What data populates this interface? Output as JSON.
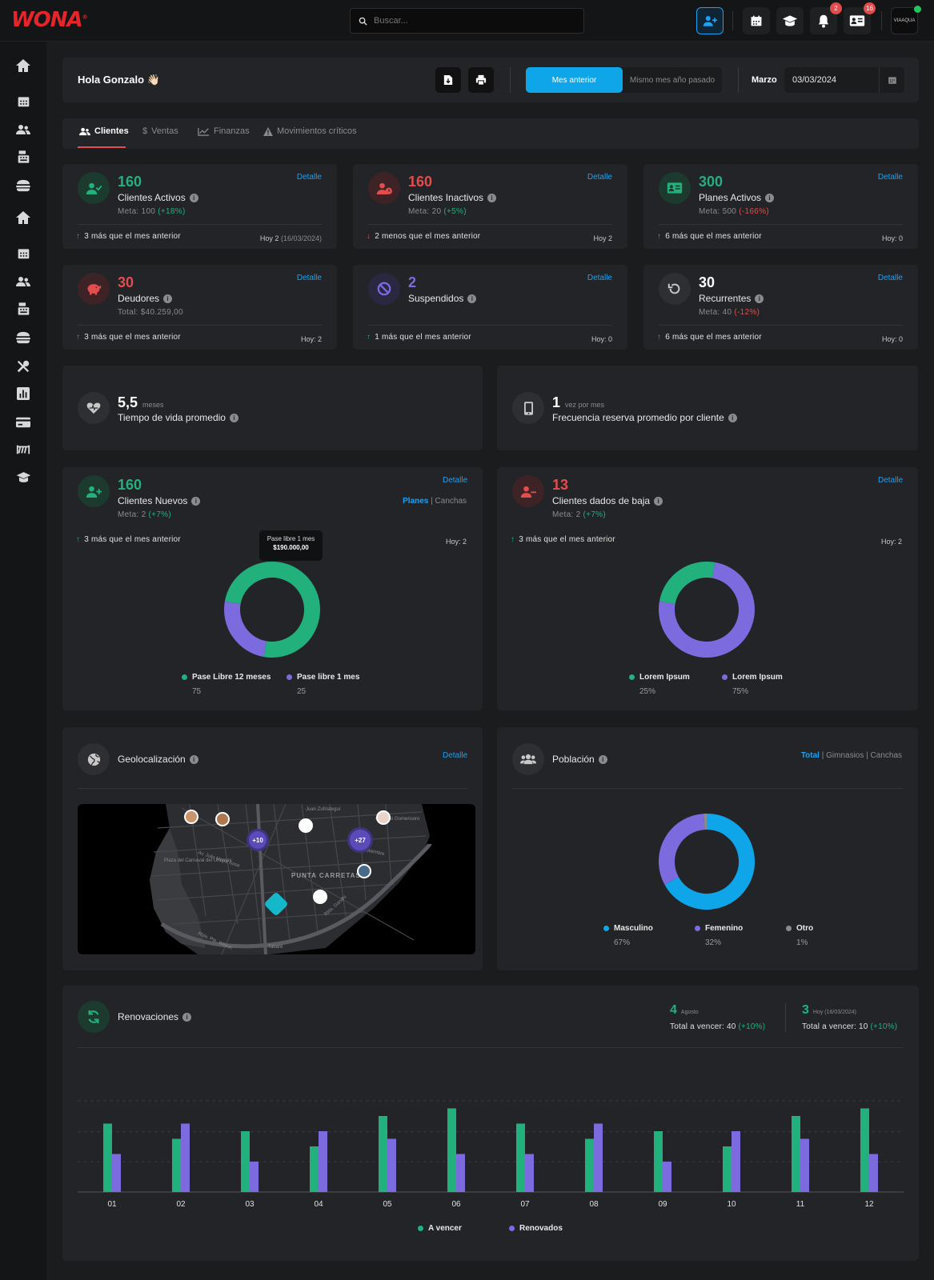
{
  "app": {
    "logo": "WONA",
    "logo_mark": "®"
  },
  "topbar": {
    "search_placeholder": "Buscar...",
    "notifications_count": "2",
    "messages_count": "16",
    "avatar_text": "VIAAQUA"
  },
  "header": {
    "greeting": "Hola Gonzalo 👋🏻",
    "segment_active": "Mes anterior",
    "segment_other": "Mismo mes año pasado",
    "month_label": "Marzo",
    "date_value": "03/03/2024"
  },
  "tabs": [
    {
      "label": "Clientes",
      "icon": "users-icon",
      "active": true
    },
    {
      "label": "Ventas",
      "icon": "dollar-icon",
      "active": false
    },
    {
      "label": "Finanzas",
      "icon": "chart-line-icon",
      "active": false
    },
    {
      "label": "Movimientos críticos",
      "icon": "warning-icon",
      "active": false
    }
  ],
  "kpis": [
    {
      "value": "160",
      "label": "Clientes Activos",
      "meta_text": "Meta: 100",
      "meta_delta": "(+18%)",
      "footer": "3 más que el mes anterior",
      "footer_right": "Hoy 2",
      "footer_right_date": "(16/03/2024)",
      "link": "Detalle",
      "color": "#22b07d",
      "icon": "user-check-icon"
    },
    {
      "value": "160",
      "label": "Clientes Inactivos",
      "meta_text": "Meta: 20",
      "meta_delta": "(+5%)",
      "footer": "2 menos que el mes anterior",
      "footer_right": "Hoy 2",
      "link": "Detalle",
      "color": "#e34d4d",
      "icon": "user-clock-icon"
    },
    {
      "value": "300",
      "label": "Planes Activos",
      "meta_text": "Meta: 500",
      "meta_delta": "(-166%)",
      "footer": "6 más que el mes anterior",
      "footer_right": "Hoy: 0",
      "link": "Detalle",
      "color": "#22b07d",
      "icon": "id-card-icon"
    },
    {
      "value": "30",
      "label": "Deudores",
      "meta_text": "Total: $40.259,00",
      "meta_delta": "",
      "footer": "3 más que el mes anterior",
      "footer_right": "Hoy: 2",
      "link": "Detalle",
      "color": "#e34d4d",
      "icon": "piggy-bank-icon"
    },
    {
      "value": "2",
      "label": "Suspendidos",
      "meta_text": "",
      "meta_delta": "",
      "footer": "1 más que el mes anterior",
      "footer_right": "Hoy: 0",
      "link": "Detalle",
      "color": "#7c6bdf",
      "icon": "ban-icon"
    },
    {
      "value": "30",
      "label": "Recurrentes",
      "meta_text": "Meta: 40",
      "meta_delta": "(-12%)",
      "footer": "6 más que el mes anterior",
      "footer_right": "Hoy: 0",
      "link": "Detalle",
      "color": "#ffffff",
      "icon": "history-icon"
    }
  ],
  "lifetime": {
    "value": "5,5",
    "unit": "meses",
    "label": "Tiempo de vida promedio"
  },
  "frequency": {
    "value": "1",
    "unit": "vez por mes",
    "label": "Frecuencia reserva promedio por cliente"
  },
  "new_clients": {
    "value": "160",
    "label": "Clientes Nuevos",
    "meta": "Meta: 2",
    "meta_delta": "(+7%)",
    "link": "Detalle",
    "filter_active": "Planes",
    "filter_other": "Canchas",
    "footer": "3 más que el mes anterior",
    "footer_right": "Hoy: 2",
    "tooltip_title": "Pase libre 1 mes",
    "tooltip_value": "$190.000,00"
  },
  "churn": {
    "value": "13",
    "label": "Clientes dados de baja",
    "meta": "Meta: 2",
    "meta_delta": "(+7%)",
    "link": "Detalle",
    "footer": "3 más que el mes anterior",
    "footer_right": "Hoy: 2"
  },
  "geo": {
    "title": "Geolocalización",
    "link": "Detalle",
    "cluster_a": "+10",
    "cluster_b": "+27",
    "map_labels": [
      "PUNTA CARRETAS",
      "Av. Julio María Sosa",
      "21 de Setiembre",
      "Plaza del Carnaval del Uruguay",
      "Gonzalo Gomensoro",
      "Rbla. Pte. Wilson",
      "Rbla. Gandhi",
      "Juan Zufriategui",
      "Tabaré"
    ]
  },
  "population": {
    "title": "Población",
    "filter_active": "Total",
    "filter_b": "Gimnasios",
    "filter_c": "Canchas"
  },
  "renewals": {
    "title": "Renovaciones",
    "s1_value": "4",
    "s1_label": "Agosto",
    "s1_text": "Total a vencer: 40",
    "s1_delta": "(+10%)",
    "s2_value": "3",
    "s2_label": "Hoy (16/03/2024)",
    "s2_text": "Total a vencer: 10",
    "s2_delta": "(+10%)"
  },
  "colors": {
    "green": "#22b07d",
    "purple": "#7c6bdf",
    "blue": "#0ea5e9",
    "gray": "#6b6c72",
    "red": "#e34d4d",
    "accent": "#1da1f2"
  },
  "chart_data": [
    {
      "type": "pie",
      "title": "Clientes Nuevos",
      "series": [
        {
          "name": "Pase Libre 12 meses",
          "value": 75,
          "display": "75",
          "color": "#22b07d"
        },
        {
          "name": "Pase libre 1 mes",
          "value": 25,
          "display": "25",
          "color": "#7c6bdf"
        }
      ]
    },
    {
      "type": "pie",
      "title": "Clientes dados de baja",
      "series": [
        {
          "name": "Lorem Ipsum",
          "value": 25,
          "display": "25%",
          "color": "#22b07d"
        },
        {
          "name": "Lorem Ipsum",
          "value": 75,
          "display": "75%",
          "color": "#7c6bdf"
        }
      ]
    },
    {
      "type": "pie",
      "title": "Población",
      "series": [
        {
          "name": "Masculino",
          "value": 67,
          "display": "67%",
          "color": "#0ea5e9"
        },
        {
          "name": "Femenino",
          "value": 32,
          "display": "32%",
          "color": "#7c6bdf"
        },
        {
          "name": "Otro",
          "value": 1,
          "display": "1%",
          "color": "#8a8b8f"
        }
      ]
    },
    {
      "type": "bar",
      "title": "Renovaciones",
      "categories": [
        "01",
        "02",
        "03",
        "04",
        "05",
        "06",
        "07",
        "08",
        "09",
        "10",
        "11",
        "12"
      ],
      "series": [
        {
          "name": "A vencer",
          "color": "#22b07d",
          "values": [
            9,
            7,
            8,
            6,
            10,
            11,
            9,
            7,
            8,
            6,
            10,
            11
          ]
        },
        {
          "name": "Renovados",
          "color": "#7c6bdf",
          "values": [
            5,
            9,
            4,
            8,
            7,
            5,
            5,
            9,
            4,
            8,
            7,
            5
          ]
        }
      ],
      "ylim": [
        0,
        12
      ],
      "grid": true
    }
  ]
}
